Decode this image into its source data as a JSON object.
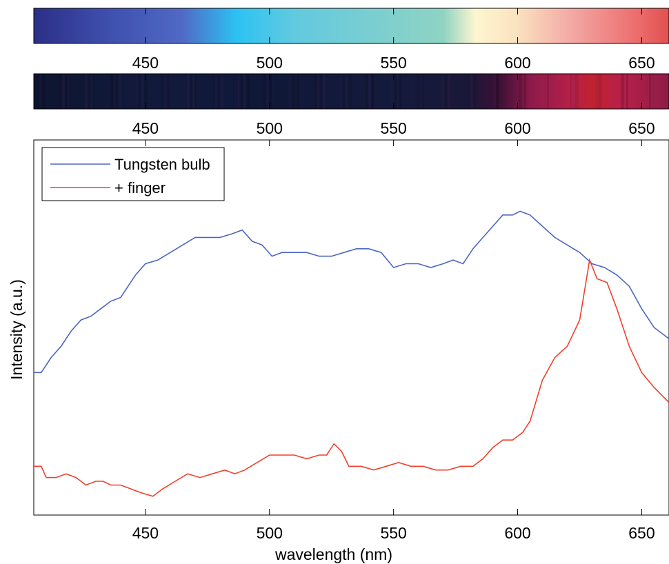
{
  "colors": {
    "tungsten_line": "#4c66c2",
    "finger_line": "#f0402c",
    "axis": "#000000",
    "background": "#ffffff"
  },
  "chart_data": [
    {
      "id": "color-map-bar",
      "type": "heatmap",
      "title": "",
      "xlim": [
        405,
        661
      ],
      "ticks": [
        450,
        500,
        550,
        600,
        650
      ],
      "tick_labels": [
        "450",
        "500",
        "550",
        "600",
        "650"
      ],
      "color_stops": [
        {
          "x": 405,
          "color": "#2b2f86"
        },
        {
          "x": 430,
          "color": "#3c4aa8"
        },
        {
          "x": 465,
          "color": "#4f6ac5"
        },
        {
          "x": 487,
          "color": "#2cc3f3"
        },
        {
          "x": 510,
          "color": "#62c9df"
        },
        {
          "x": 545,
          "color": "#7dcfcf"
        },
        {
          "x": 570,
          "color": "#8fd3c3"
        },
        {
          "x": 583,
          "color": "#fdf6d0"
        },
        {
          "x": 600,
          "color": "#fbe1c0"
        },
        {
          "x": 622,
          "color": "#f3a8a4"
        },
        {
          "x": 648,
          "color": "#ec6d6d"
        },
        {
          "x": 661,
          "color": "#e25050"
        }
      ]
    },
    {
      "id": "intensity-bar",
      "type": "heatmap",
      "title": "",
      "xlim": [
        405,
        661
      ],
      "ticks": [
        450,
        500,
        550,
        600,
        650
      ],
      "tick_labels": [
        "450",
        "500",
        "550",
        "600",
        "650"
      ],
      "color_stops": [
        {
          "x": 405,
          "color": "#0e1530"
        },
        {
          "x": 450,
          "color": "#121a3c"
        },
        {
          "x": 500,
          "color": "#101838"
        },
        {
          "x": 550,
          "color": "#141a3c"
        },
        {
          "x": 580,
          "color": "#1a1838"
        },
        {
          "x": 592,
          "color": "#3a1035"
        },
        {
          "x": 605,
          "color": "#8c1a4a"
        },
        {
          "x": 622,
          "color": "#b8204a"
        },
        {
          "x": 630,
          "color": "#c0222e"
        },
        {
          "x": 642,
          "color": "#b8204a"
        },
        {
          "x": 661,
          "color": "#8c1c46"
        }
      ]
    },
    {
      "id": "spectrum-plot",
      "type": "line",
      "title": "",
      "xlabel": "wavelength (nm)",
      "ylabel": "Intensity (a.u.)",
      "xlim": [
        405,
        661
      ],
      "ylim": [
        0,
        1
      ],
      "xticks": [
        450,
        500,
        550,
        600,
        650
      ],
      "xtick_labels": [
        "450",
        "500",
        "550",
        "600",
        "650"
      ],
      "grid": false,
      "legend_position": "top-left",
      "series": [
        {
          "name": "Tungsten bulb",
          "x": [
            405,
            408,
            412,
            416,
            420,
            424,
            428,
            432,
            436,
            440,
            443,
            446,
            450,
            455,
            460,
            465,
            470,
            475,
            480,
            485,
            489,
            493,
            497,
            501,
            505,
            510,
            515,
            520,
            525,
            530,
            535,
            540,
            545,
            550,
            555,
            560,
            565,
            570,
            574,
            578,
            582,
            586,
            590,
            594,
            598,
            601,
            605,
            610,
            615,
            620,
            625,
            630,
            635,
            640,
            645,
            650,
            655,
            661
          ],
          "y": [
            0.38,
            0.38,
            0.42,
            0.45,
            0.49,
            0.52,
            0.53,
            0.55,
            0.57,
            0.58,
            0.61,
            0.64,
            0.67,
            0.68,
            0.7,
            0.72,
            0.74,
            0.74,
            0.74,
            0.75,
            0.76,
            0.73,
            0.72,
            0.69,
            0.7,
            0.7,
            0.7,
            0.69,
            0.69,
            0.7,
            0.71,
            0.71,
            0.7,
            0.66,
            0.67,
            0.67,
            0.66,
            0.67,
            0.68,
            0.67,
            0.71,
            0.74,
            0.77,
            0.8,
            0.8,
            0.81,
            0.8,
            0.77,
            0.74,
            0.72,
            0.7,
            0.67,
            0.66,
            0.64,
            0.61,
            0.55,
            0.5,
            0.47
          ]
        },
        {
          "name": "+ finger",
          "x": [
            405,
            408,
            410,
            414,
            418,
            422,
            426,
            430,
            433,
            436,
            440,
            444,
            448,
            453,
            457,
            462,
            467,
            472,
            477,
            482,
            486,
            490,
            495,
            500,
            505,
            510,
            515,
            520,
            523,
            526,
            529,
            532,
            537,
            542,
            547,
            552,
            557,
            562,
            567,
            572,
            577,
            582,
            586,
            590,
            594,
            598,
            602,
            605,
            610,
            615,
            620,
            625,
            629,
            632,
            636,
            640,
            645,
            650,
            655,
            661
          ],
          "y": [
            0.13,
            0.13,
            0.1,
            0.1,
            0.11,
            0.1,
            0.08,
            0.09,
            0.09,
            0.08,
            0.08,
            0.07,
            0.06,
            0.05,
            0.07,
            0.09,
            0.11,
            0.1,
            0.11,
            0.12,
            0.11,
            0.12,
            0.14,
            0.16,
            0.16,
            0.16,
            0.15,
            0.16,
            0.16,
            0.19,
            0.17,
            0.13,
            0.13,
            0.12,
            0.13,
            0.14,
            0.13,
            0.13,
            0.12,
            0.12,
            0.13,
            0.13,
            0.15,
            0.18,
            0.2,
            0.2,
            0.22,
            0.25,
            0.36,
            0.42,
            0.45,
            0.52,
            0.68,
            0.63,
            0.62,
            0.55,
            0.45,
            0.38,
            0.34,
            0.3
          ]
        }
      ]
    }
  ]
}
